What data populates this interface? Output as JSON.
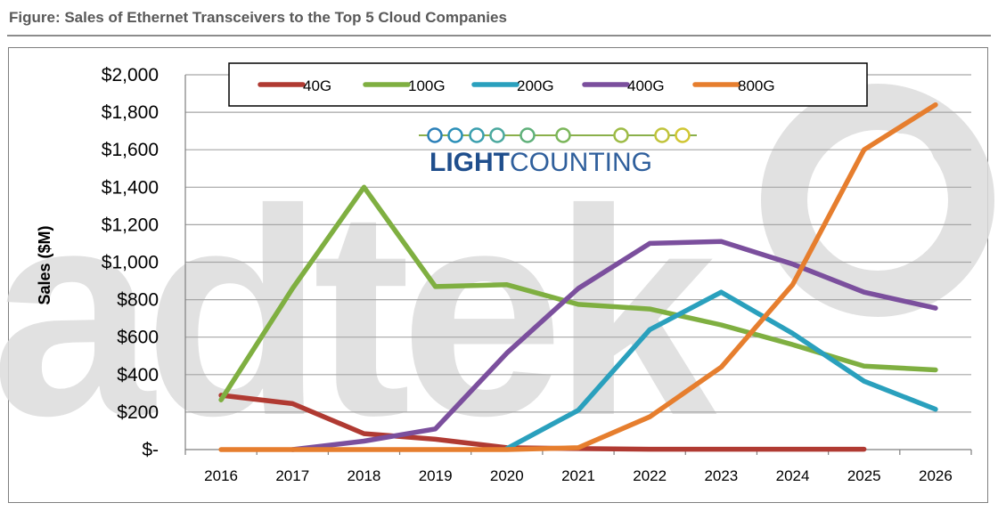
{
  "figure_title": "Figure: Sales of Ethernet Transceivers to the Top 5 Cloud Companies",
  "watermark": {
    "text": "adtek"
  },
  "logo": {
    "text_bold": "LIGHT",
    "text_light": "COUNTING"
  },
  "colors": {
    "grid": "#a6a6a6",
    "axis": "#7f7f7f",
    "watermark": "#dcdcdc",
    "logo_blue": "#1f4e8c"
  },
  "chart_data": {
    "type": "line",
    "title": "",
    "xlabel": "",
    "ylabel": "Sales ($M)",
    "x": [
      "2016",
      "2017",
      "2018",
      "2019",
      "2020",
      "2021",
      "2022",
      "2023",
      "2024",
      "2025",
      "2026"
    ],
    "ylim": [
      0,
      2000
    ],
    "yticks": [
      0,
      200,
      400,
      600,
      800,
      1000,
      1200,
      1400,
      1600,
      1800,
      2000
    ],
    "ytick_labels": [
      "$-",
      "$200",
      "$400",
      "$600",
      "$800",
      "$1,000",
      "$1,200",
      "$1,400",
      "$1,600",
      "$1,800",
      "$2,000"
    ],
    "grid": true,
    "legend_position": "top",
    "series": [
      {
        "name": "40G",
        "color": "#b03a32",
        "values": [
          290,
          245,
          85,
          55,
          10,
          5,
          2,
          2,
          2,
          2,
          null
        ]
      },
      {
        "name": "100G",
        "color": "#7faf41",
        "values": [
          265,
          860,
          1400,
          870,
          880,
          775,
          750,
          665,
          560,
          445,
          425
        ]
      },
      {
        "name": "200G",
        "color": "#2aa0bd",
        "values": [
          null,
          null,
          null,
          null,
          5,
          210,
          640,
          840,
          620,
          365,
          215
        ]
      },
      {
        "name": "400G",
        "color": "#7b4f9d",
        "values": [
          null,
          0,
          45,
          110,
          515,
          860,
          1100,
          1110,
          990,
          840,
          755
        ]
      },
      {
        "name": "800G",
        "color": "#e67e2e",
        "values": [
          0,
          0,
          0,
          0,
          0,
          10,
          175,
          440,
          880,
          1600,
          1840
        ]
      }
    ]
  }
}
